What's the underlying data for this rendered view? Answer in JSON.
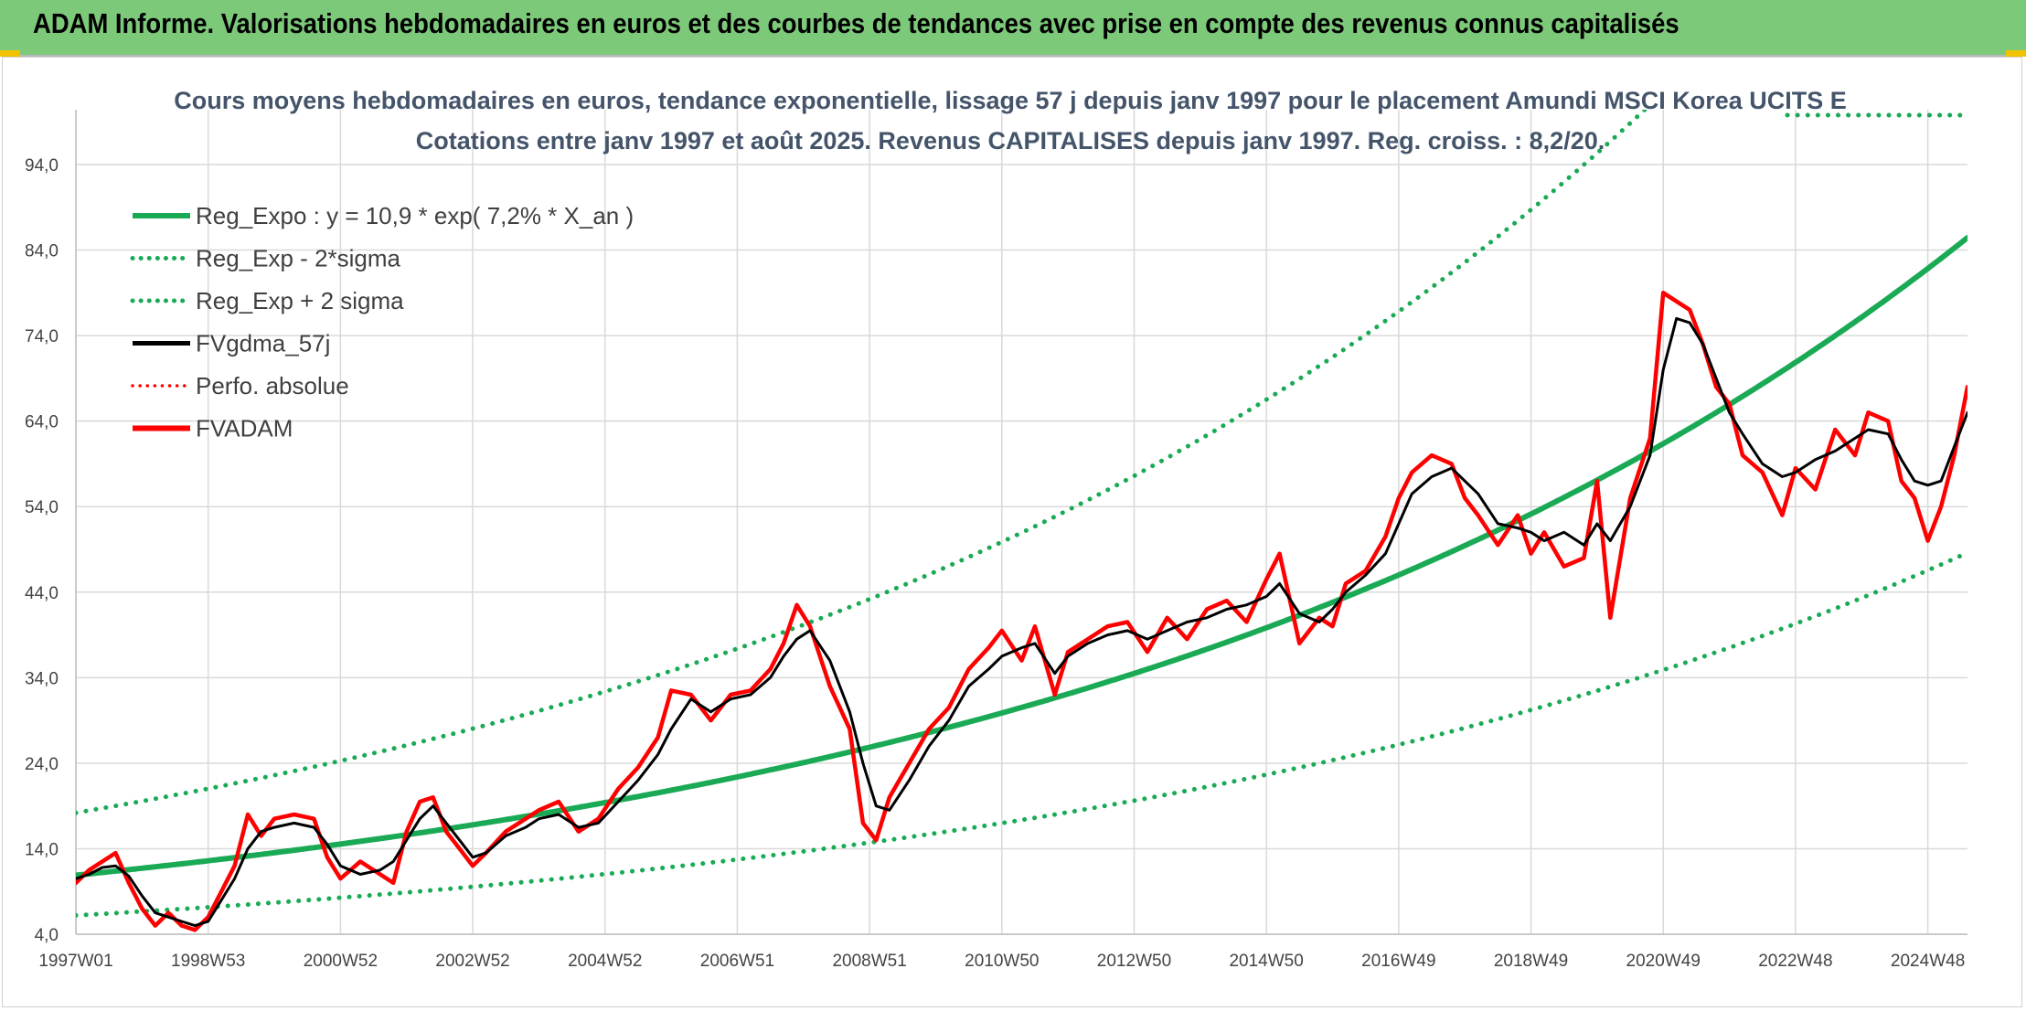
{
  "header": {
    "title": "ADAM Informe. Valorisations hebdomadaires en euros et des courbes de tendances avec prise en compte des revenus connus capitalisés"
  },
  "colors": {
    "header_bg": "#7dc97a",
    "trend": "#1aaa55",
    "fvgdma": "#000000",
    "fvadam": "#ff0000",
    "perfo": "#ff0000",
    "grid": "#d9d9d9"
  },
  "chart_data": {
    "type": "line",
    "title": "Cours moyens hebdomadaires en euros, tendance exponentielle, lissage 57 j depuis janv 1997 pour le placement Amundi MSCI Korea UCITS E",
    "subtitle": "Cotations entre janv 1997 et août 2025. Revenus CAPITALISES depuis janv 1997. Reg. croiss. : 8,2/20.",
    "xlabel": "",
    "ylabel": "",
    "ylim": [
      4,
      94
    ],
    "xlim": [
      1997.0,
      2025.6
    ],
    "grid": true,
    "legend_position": "top-left",
    "y_ticks": [
      "4,0",
      "14,0",
      "24,0",
      "34,0",
      "44,0",
      "54,0",
      "64,0",
      "74,0",
      "84,0",
      "94,0"
    ],
    "x_ticks": [
      {
        "label": "1997W01",
        "year": 1997.0
      },
      {
        "label": "1998W53",
        "year": 1999.0
      },
      {
        "label": "2000W52",
        "year": 2001.0
      },
      {
        "label": "2002W52",
        "year": 2003.0
      },
      {
        "label": "2004W52",
        "year": 2005.0
      },
      {
        "label": "2006W51",
        "year": 2007.0
      },
      {
        "label": "2008W51",
        "year": 2009.0
      },
      {
        "label": "2010W50",
        "year": 2011.0
      },
      {
        "label": "2012W50",
        "year": 2013.0
      },
      {
        "label": "2014W50",
        "year": 2015.0
      },
      {
        "label": "2016W49",
        "year": 2017.0
      },
      {
        "label": "2018W49",
        "year": 2019.0
      },
      {
        "label": "2020W49",
        "year": 2021.0
      },
      {
        "label": "2022W48",
        "year": 2023.0
      },
      {
        "label": "2024W48",
        "year": 2025.0
      }
    ],
    "series": [
      {
        "name": "Reg_Expo : y = 10,9 * exp( 7,2% *  X_an )",
        "style": "trend",
        "formula": {
          "a": 10.9,
          "b": 0.072
        }
      },
      {
        "name": "Reg_Exp - 2*sigma",
        "style": "band",
        "formula": {
          "a": 6.2,
          "b": 0.072
        }
      },
      {
        "name": "Reg_Exp + 2 sigma",
        "style": "band",
        "formula": {
          "a": 18.2,
          "b": 0.072
        }
      },
      {
        "name": "FVgdma_57j",
        "style": "smooth",
        "x": [
          1997.0,
          1997.2,
          1997.4,
          1997.6,
          1997.8,
          1998.0,
          1998.2,
          1998.4,
          1998.6,
          1998.8,
          1999.0,
          1999.2,
          1999.4,
          1999.6,
          1999.8,
          2000.0,
          2000.3,
          2000.6,
          2000.8,
          2001.0,
          2001.3,
          2001.6,
          2001.8,
          2002.0,
          2002.2,
          2002.4,
          2002.6,
          2002.8,
          2003.0,
          2003.2,
          2003.5,
          2003.8,
          2004.0,
          2004.3,
          2004.6,
          2004.9,
          2005.2,
          2005.5,
          2005.8,
          2006.0,
          2006.3,
          2006.6,
          2006.9,
          2007.2,
          2007.5,
          2007.7,
          2007.9,
          2008.1,
          2008.4,
          2008.7,
          2008.9,
          2009.1,
          2009.3,
          2009.6,
          2009.9,
          2010.2,
          2010.5,
          2010.8,
          2011.0,
          2011.3,
          2011.5,
          2011.8,
          2012.0,
          2012.3,
          2012.6,
          2012.9,
          2013.2,
          2013.5,
          2013.8,
          2014.1,
          2014.4,
          2014.7,
          2015.0,
          2015.2,
          2015.5,
          2015.8,
          2016.0,
          2016.2,
          2016.5,
          2016.8,
          2017.0,
          2017.2,
          2017.5,
          2017.8,
          2018.0,
          2018.2,
          2018.5,
          2018.8,
          2019.0,
          2019.2,
          2019.5,
          2019.8,
          2020.0,
          2020.2,
          2020.5,
          2020.8,
          2021.0,
          2021.2,
          2021.4,
          2021.6,
          2021.8,
          2022.0,
          2022.2,
          2022.5,
          2022.8,
          2023.0,
          2023.3,
          2023.6,
          2023.9,
          2024.1,
          2024.4,
          2024.6,
          2024.8,
          2025.0,
          2025.2,
          2025.4,
          2025.6
        ],
        "y": [
          10.5,
          11.0,
          11.8,
          12.0,
          10.8,
          8.5,
          6.5,
          6.0,
          5.5,
          5.0,
          5.5,
          8.0,
          10.5,
          14.0,
          16.0,
          16.5,
          17.0,
          16.5,
          14.5,
          12.0,
          11.0,
          11.5,
          12.5,
          15.0,
          17.5,
          19.0,
          17.0,
          15.0,
          13.0,
          13.5,
          15.5,
          16.5,
          17.5,
          18.0,
          16.5,
          17.0,
          19.5,
          22.0,
          25.0,
          28.0,
          31.5,
          30.0,
          31.5,
          32.0,
          34.0,
          36.5,
          38.5,
          39.5,
          36.0,
          30.0,
          24.0,
          19.0,
          18.5,
          22.0,
          26.0,
          29.0,
          33.0,
          35.0,
          36.5,
          37.5,
          38.0,
          34.5,
          36.5,
          38.0,
          39.0,
          39.5,
          38.5,
          39.5,
          40.5,
          41.0,
          42.0,
          42.5,
          43.5,
          45.0,
          41.5,
          40.5,
          42.0,
          44.0,
          46.0,
          48.5,
          52.0,
          55.5,
          57.5,
          58.5,
          57.0,
          55.5,
          52.0,
          51.5,
          51.0,
          50.0,
          51.0,
          49.5,
          52.0,
          50.0,
          54.0,
          60.0,
          70.0,
          76.0,
          75.5,
          73.0,
          69.0,
          65.0,
          62.5,
          59.0,
          57.5,
          58.0,
          59.5,
          60.5,
          62.0,
          63.0,
          62.5,
          59.5,
          57.0,
          56.5,
          57.0,
          61.0,
          65.0
        ]
      },
      {
        "name": "Perfo. absolue",
        "style": "dotted-red",
        "x": [],
        "y": []
      },
      {
        "name": "FVADAM",
        "style": "raw",
        "x": [
          1997.0,
          1997.2,
          1997.4,
          1997.6,
          1997.8,
          1998.0,
          1998.2,
          1998.4,
          1998.6,
          1998.8,
          1999.0,
          1999.2,
          1999.4,
          1999.6,
          1999.8,
          2000.0,
          2000.3,
          2000.6,
          2000.8,
          2001.0,
          2001.3,
          2001.6,
          2001.8,
          2002.0,
          2002.2,
          2002.4,
          2002.6,
          2002.8,
          2003.0,
          2003.2,
          2003.5,
          2003.8,
          2004.0,
          2004.3,
          2004.6,
          2004.9,
          2005.2,
          2005.5,
          2005.8,
          2006.0,
          2006.3,
          2006.6,
          2006.9,
          2007.2,
          2007.5,
          2007.7,
          2007.9,
          2008.1,
          2008.4,
          2008.7,
          2008.9,
          2009.1,
          2009.3,
          2009.6,
          2009.9,
          2010.2,
          2010.5,
          2010.8,
          2011.0,
          2011.3,
          2011.5,
          2011.8,
          2012.0,
          2012.3,
          2012.6,
          2012.9,
          2013.2,
          2013.5,
          2013.8,
          2014.1,
          2014.4,
          2014.7,
          2015.0,
          2015.2,
          2015.5,
          2015.8,
          2016.0,
          2016.2,
          2016.5,
          2016.8,
          2017.0,
          2017.2,
          2017.5,
          2017.8,
          2018.0,
          2018.2,
          2018.5,
          2018.8,
          2019.0,
          2019.2,
          2019.5,
          2019.8,
          2020.0,
          2020.2,
          2020.5,
          2020.8,
          2021.0,
          2021.2,
          2021.4,
          2021.6,
          2021.8,
          2022.0,
          2022.2,
          2022.5,
          2022.8,
          2023.0,
          2023.3,
          2023.6,
          2023.9,
          2024.1,
          2024.4,
          2024.6,
          2024.8,
          2025.0,
          2025.2,
          2025.4,
          2025.6
        ],
        "y": [
          10.0,
          11.5,
          12.5,
          13.5,
          10.0,
          7.0,
          5.0,
          6.5,
          5.0,
          4.5,
          6.0,
          9.0,
          12.0,
          18.0,
          15.5,
          17.5,
          18.0,
          17.5,
          13.0,
          10.5,
          12.5,
          11.0,
          10.0,
          16.0,
          19.5,
          20.0,
          16.0,
          14.0,
          12.0,
          13.5,
          16.0,
          17.5,
          18.5,
          19.5,
          16.0,
          17.5,
          21.0,
          23.5,
          27.0,
          32.5,
          32.0,
          29.0,
          32.0,
          32.5,
          35.0,
          38.0,
          42.5,
          40.0,
          33.0,
          28.0,
          17.0,
          15.0,
          20.0,
          24.0,
          28.0,
          30.5,
          35.0,
          37.5,
          39.5,
          36.0,
          40.0,
          32.0,
          37.0,
          38.5,
          40.0,
          40.5,
          37.0,
          41.0,
          38.5,
          42.0,
          43.0,
          40.5,
          45.5,
          48.5,
          38.0,
          41.0,
          40.0,
          45.0,
          46.5,
          50.5,
          55.0,
          58.0,
          60.0,
          59.0,
          55.0,
          53.0,
          49.5,
          53.0,
          48.5,
          51.0,
          47.0,
          48.0,
          57.0,
          41.0,
          55.0,
          62.0,
          79.0,
          78.0,
          77.0,
          73.0,
          68.0,
          66.0,
          60.0,
          58.0,
          53.0,
          58.5,
          56.0,
          63.0,
          60.0,
          65.0,
          64.0,
          57.0,
          55.0,
          50.0,
          54.0,
          60.0,
          68.0
        ]
      }
    ]
  }
}
